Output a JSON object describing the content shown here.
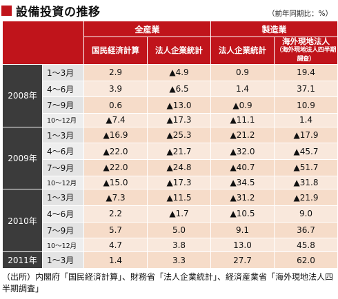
{
  "title": "設備投資の推移",
  "unit_note": "（前年同期比：%）",
  "headers": {
    "group_all": "全産業",
    "group_mfg": "製造業",
    "col1": "国民経済計算",
    "col2": "法人企業統計",
    "col3": "法人企業統計",
    "col4_main": "海外現地法人",
    "col4_sub": "（海外現地法人四半期調査）"
  },
  "years": [
    {
      "label": "2008年",
      "rows": [
        {
          "period": "1～3月",
          "v": [
            "2.9",
            "▲4.9",
            "0.9",
            "19.4"
          ]
        },
        {
          "period": "4～6月",
          "v": [
            "3.9",
            "▲6.5",
            "1.4",
            "37.1"
          ]
        },
        {
          "period": "7～9月",
          "v": [
            "0.6",
            "▲13.0",
            "▲0.9",
            "10.9"
          ]
        },
        {
          "period": "10～12月",
          "v": [
            "▲7.4",
            "▲17.3",
            "▲11.1",
            "1.4"
          ]
        }
      ]
    },
    {
      "label": "2009年",
      "rows": [
        {
          "period": "1～3月",
          "v": [
            "▲16.9",
            "▲25.3",
            "▲21.2",
            "▲17.9"
          ]
        },
        {
          "period": "4～6月",
          "v": [
            "▲22.0",
            "▲21.7",
            "▲32.0",
            "▲45.7"
          ]
        },
        {
          "period": "7～9月",
          "v": [
            "▲22.0",
            "▲24.8",
            "▲40.7",
            "▲51.7"
          ]
        },
        {
          "period": "10～12月",
          "v": [
            "▲15.0",
            "▲17.3",
            "▲34.5",
            "▲31.8"
          ]
        }
      ]
    },
    {
      "label": "2010年",
      "rows": [
        {
          "period": "1～3月",
          "v": [
            "▲7.3",
            "▲11.5",
            "▲31.2",
            "▲21.9"
          ]
        },
        {
          "period": "4～6月",
          "v": [
            "2.2",
            "▲1.7",
            "▲10.5",
            "9.0"
          ]
        },
        {
          "period": "7～9月",
          "v": [
            "5.7",
            "5.0",
            "9.1",
            "36.7"
          ]
        },
        {
          "period": "10～12月",
          "v": [
            "4.7",
            "3.8",
            "13.0",
            "45.8"
          ]
        }
      ]
    },
    {
      "label": "2011年",
      "rows": [
        {
          "period": "1～3月",
          "v": [
            "1.4",
            "3.3",
            "27.7",
            "62.0"
          ]
        }
      ]
    }
  ],
  "source": "（出所）内閣府「国民経済計算」、財務省「法人企業統計」、経済産業省「海外現地法人四半期調査」"
}
